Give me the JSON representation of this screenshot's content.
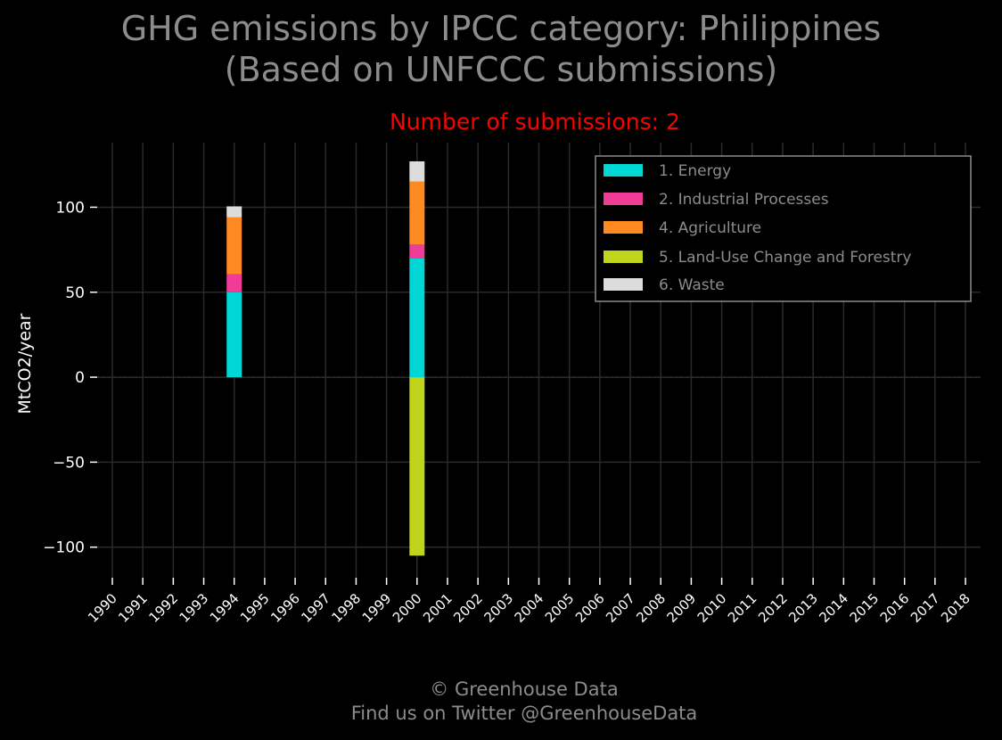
{
  "title_line1": "GHG emissions by IPCC category: Philippines",
  "title_line2": "(Based on UNFCCC submissions)",
  "subtitle": "Number of submissions: 2",
  "footer_line1": "© Greenhouse Data",
  "footer_line2": "Find us on Twitter @GreenhouseData",
  "colors": {
    "background": "#000000",
    "title": "#8c8c8c",
    "subtitle": "#ff0000",
    "grid": "#2a2a2a",
    "axis_text": "#ffffff",
    "legend_text": "#8c8c8c",
    "legend_border": "#8c8c8c"
  },
  "chart_data": {
    "type": "bar",
    "stacked": true,
    "title": "GHG emissions by IPCC category: Philippines",
    "ylabel": "MtCO2/year",
    "xlabel": "",
    "ylim": [
      -118,
      138
    ],
    "yticks": [
      100,
      50,
      0,
      -50,
      -100
    ],
    "ytick_labels": [
      "100",
      "50",
      "0",
      "−50",
      "−100"
    ],
    "grid": true,
    "legend_position": "top-right",
    "categories": [
      "1990",
      "1991",
      "1992",
      "1993",
      "1994",
      "1995",
      "1996",
      "1997",
      "1998",
      "1999",
      "2000",
      "2001",
      "2002",
      "2003",
      "2004",
      "2005",
      "2006",
      "2007",
      "2008",
      "2009",
      "2010",
      "2011",
      "2012",
      "2013",
      "2014",
      "2015",
      "2016",
      "2017",
      "2018"
    ],
    "series": [
      {
        "name": "1. Energy",
        "color": "#00d6d6",
        "values": [
          null,
          null,
          null,
          null,
          50,
          null,
          null,
          null,
          null,
          null,
          70,
          null,
          null,
          null,
          null,
          null,
          null,
          null,
          null,
          null,
          null,
          null,
          null,
          null,
          null,
          null,
          null,
          null,
          null
        ]
      },
      {
        "name": "2. Industrial Processes",
        "color": "#f03c96",
        "values": [
          null,
          null,
          null,
          null,
          10.5,
          null,
          null,
          null,
          null,
          null,
          8,
          null,
          null,
          null,
          null,
          null,
          null,
          null,
          null,
          null,
          null,
          null,
          null,
          null,
          null,
          null,
          null,
          null,
          null
        ]
      },
      {
        "name": "4. Agriculture",
        "color": "#ff8a21",
        "values": [
          null,
          null,
          null,
          null,
          33.5,
          null,
          null,
          null,
          null,
          null,
          37,
          null,
          null,
          null,
          null,
          null,
          null,
          null,
          null,
          null,
          null,
          null,
          null,
          null,
          null,
          null,
          null,
          null,
          null
        ]
      },
      {
        "name": "5. Land-Use Change and Forestry",
        "color": "#bfd41a",
        "values": [
          null,
          null,
          null,
          null,
          0,
          null,
          null,
          null,
          null,
          null,
          -105,
          null,
          null,
          null,
          null,
          null,
          null,
          null,
          null,
          null,
          null,
          null,
          null,
          null,
          null,
          null,
          null,
          null,
          null
        ]
      },
      {
        "name": "6. Waste",
        "color": "#dcdcdc",
        "values": [
          null,
          null,
          null,
          null,
          6.5,
          null,
          null,
          null,
          null,
          null,
          12,
          null,
          null,
          null,
          null,
          null,
          null,
          null,
          null,
          null,
          null,
          null,
          null,
          null,
          null,
          null,
          null,
          null,
          null
        ]
      }
    ]
  }
}
